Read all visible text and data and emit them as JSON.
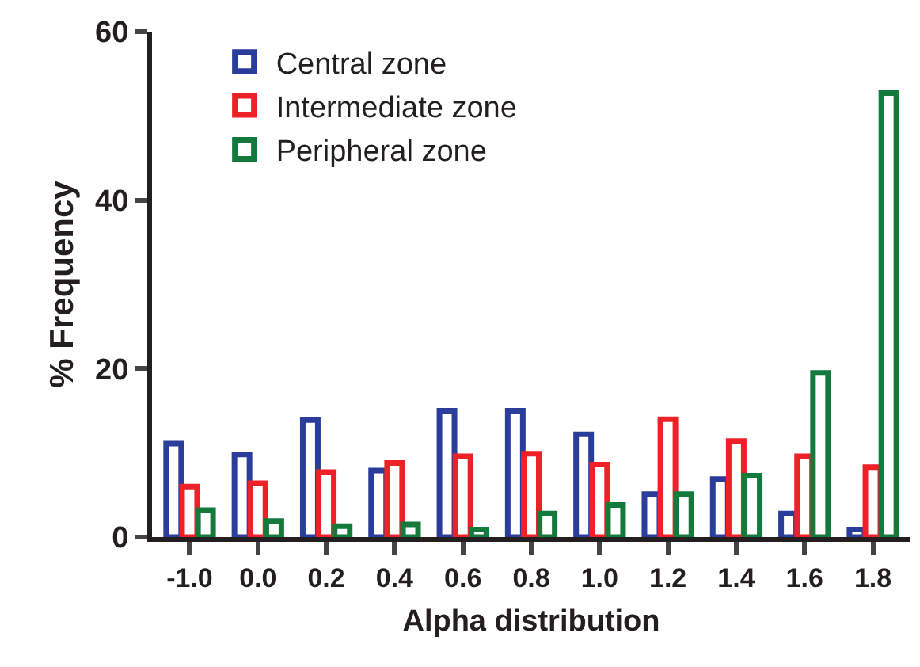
{
  "chart_data": {
    "type": "bar",
    "xlabel": "Alpha distribution",
    "ylabel": "% Frequency",
    "categories": [
      "-1.0",
      "0.0",
      "0.2",
      "0.4",
      "0.6",
      "0.8",
      "1.0",
      "1.2",
      "1.4",
      "1.6",
      "1.8"
    ],
    "series": [
      {
        "name": "Central zone",
        "color": "#2b3d9a",
        "values": [
          11.1,
          9.8,
          13.9,
          7.9,
          15,
          15,
          12.2,
          5.1,
          6.9,
          2.8,
          0.9
        ]
      },
      {
        "name": "Intermediate zone",
        "color": "#ee2028",
        "values": [
          6,
          6.4,
          7.7,
          8.8,
          9.6,
          9.9,
          8.6,
          14,
          11.4,
          9.6,
          8.3
        ]
      },
      {
        "name": "Peripheral zone",
        "color": "#137a3c",
        "values": [
          3.2,
          1.9,
          1.3,
          1.5,
          0.9,
          2.8,
          3.8,
          5.1,
          7.3,
          19.5,
          52.7
        ]
      }
    ],
    "ylim": [
      0,
      60
    ],
    "yticks": [
      0,
      20,
      40,
      60
    ],
    "legend": "top left"
  }
}
